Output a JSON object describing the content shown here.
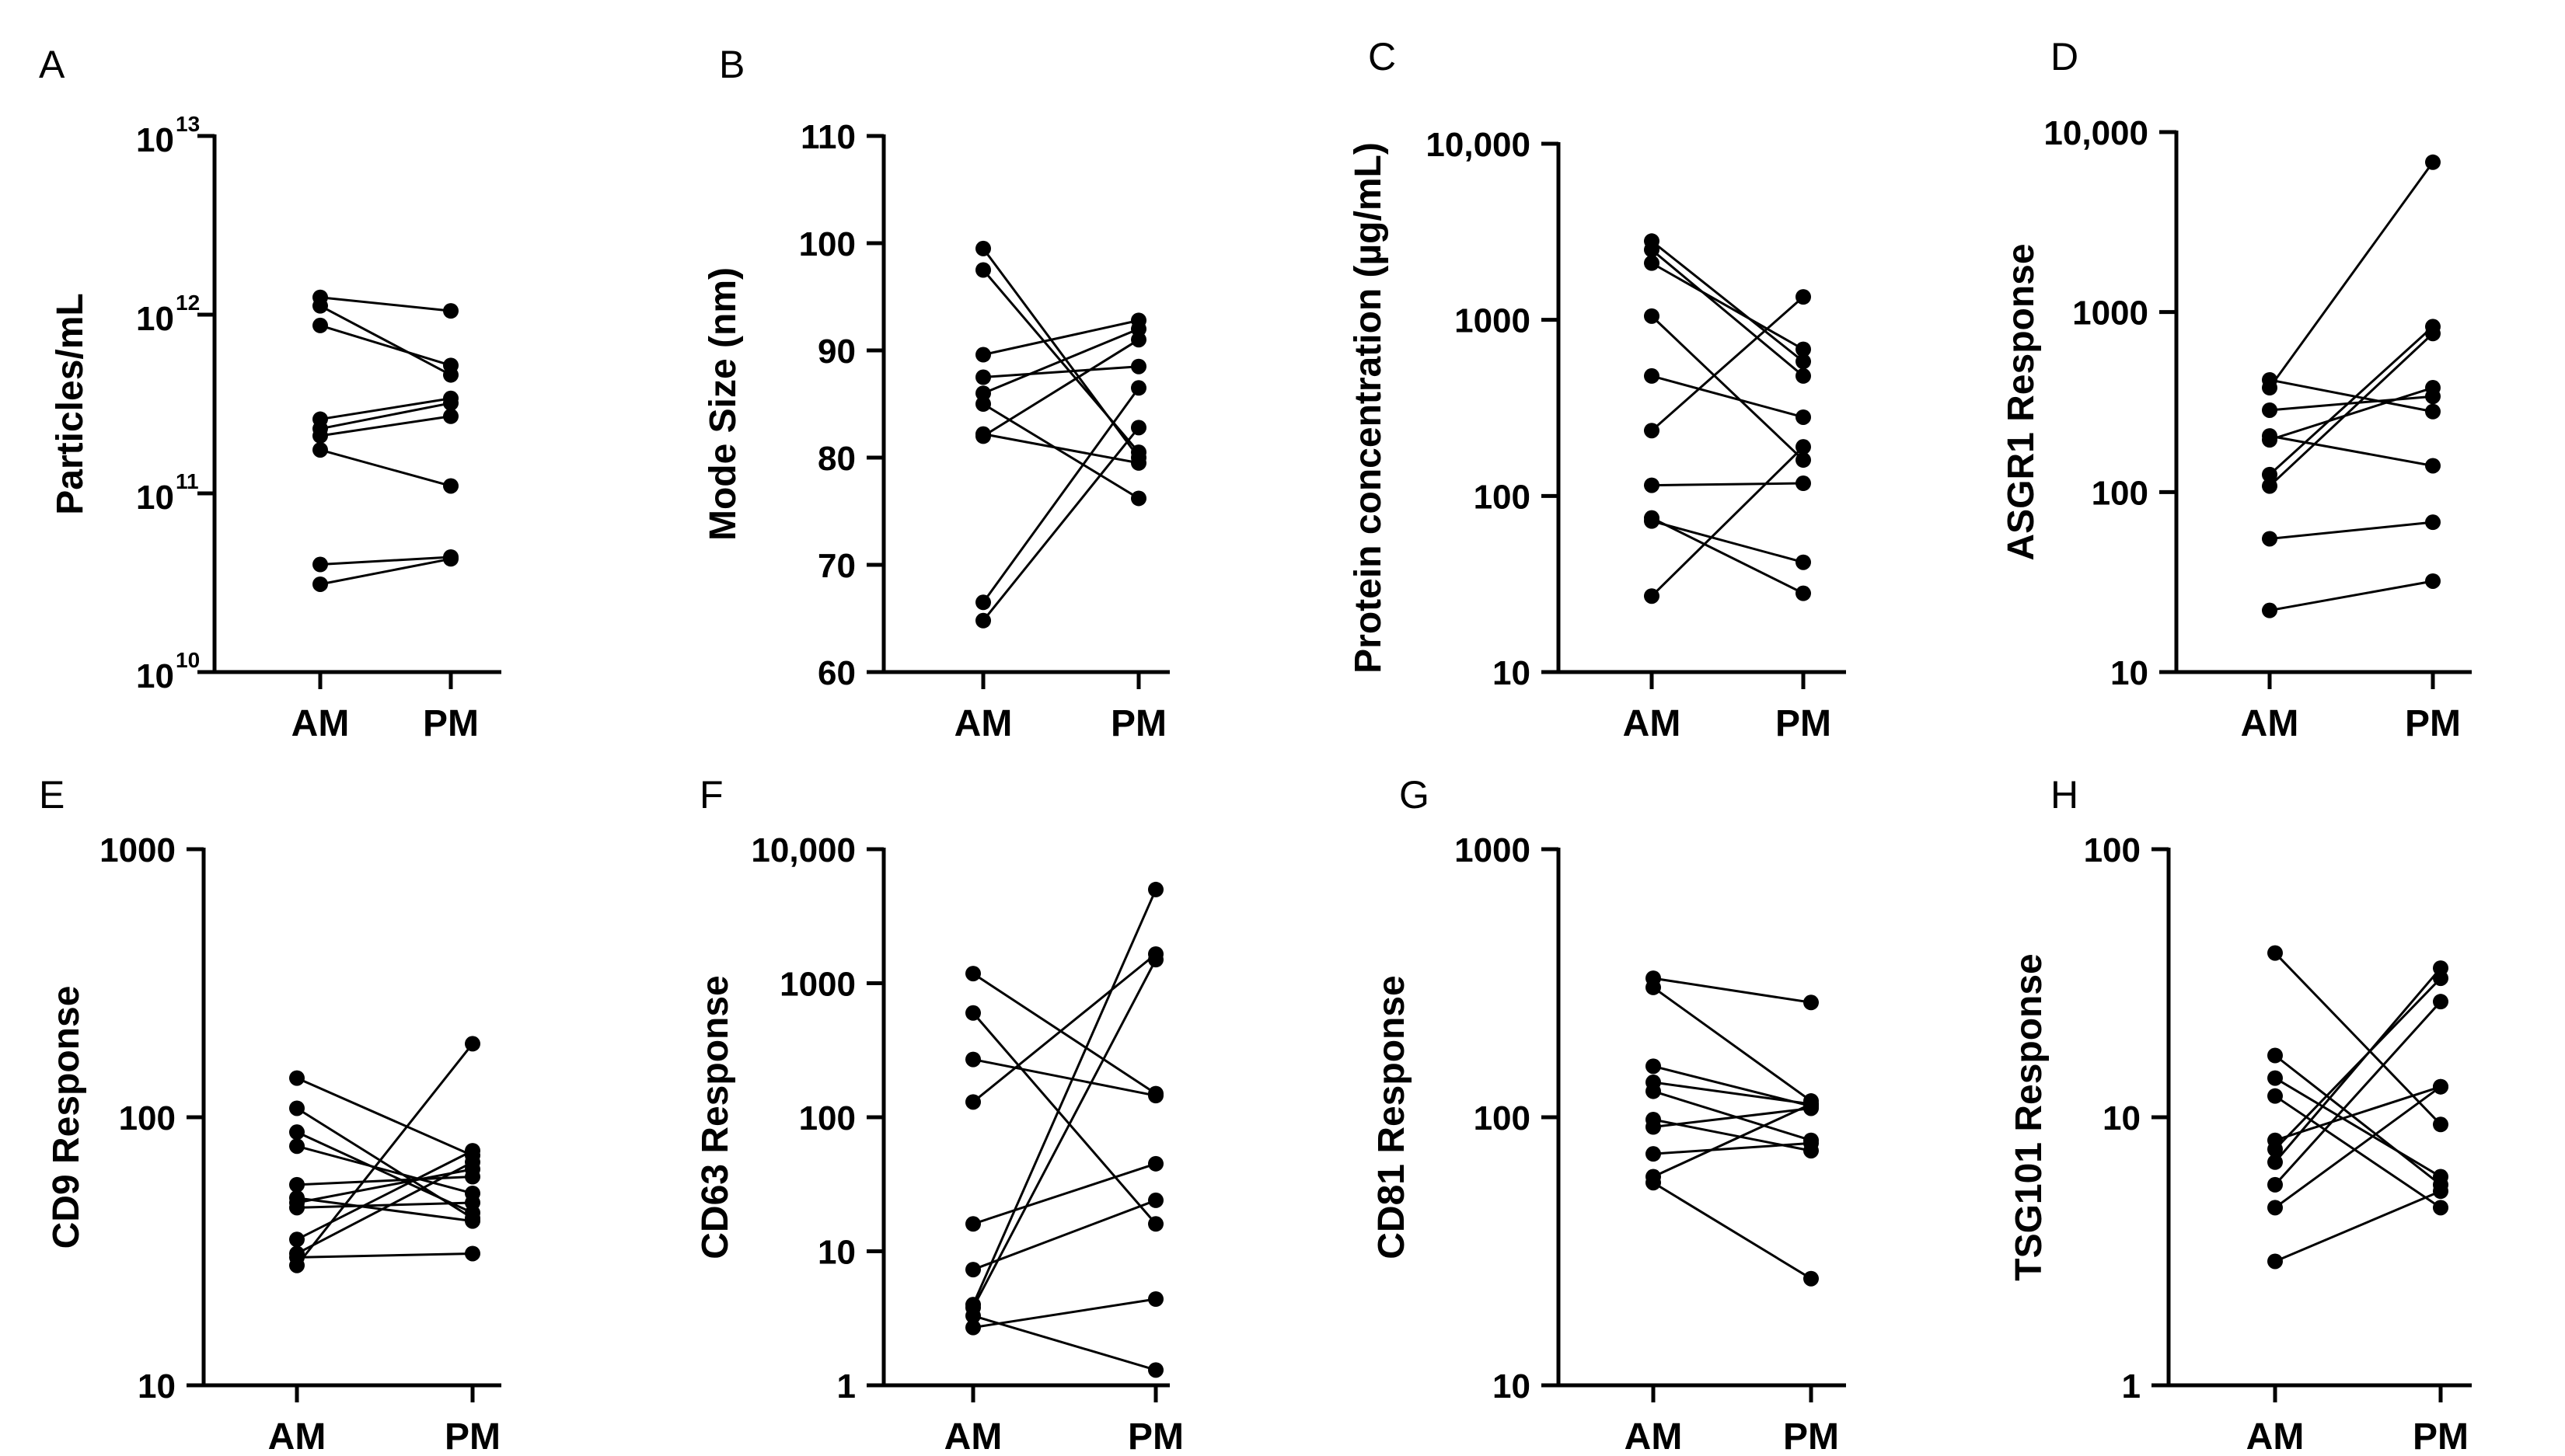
{
  "figure_description_free": true,
  "chart_data": [
    {
      "panel": "A",
      "type": "scatter",
      "scale": "log",
      "ylabel": "Particles/mL",
      "yticks": [
        {
          "v": 10000000000.0,
          "base": "10",
          "exp": "10"
        },
        {
          "v": 100000000000.0,
          "base": "10",
          "exp": "11"
        },
        {
          "v": 1000000000000.0,
          "base": "10",
          "exp": "12"
        },
        {
          "v": 10000000000000.0,
          "base": "10",
          "exp": "13"
        }
      ],
      "ylim": [
        10000000000.0,
        10000000000000.0
      ],
      "categories": [
        "AM",
        "PM"
      ],
      "pairs": [
        [
          1250000000000.0,
          1050000000000.0
        ],
        [
          1120000000000.0,
          460000000000.0
        ],
        [
          870000000000.0,
          520000000000.0
        ],
        [
          260000000000.0,
          340000000000.0
        ],
        [
          230000000000.0,
          320000000000.0
        ],
        [
          210000000000.0,
          270000000000.0
        ],
        [
          175000000000.0,
          110000000000.0
        ],
        [
          40000000000.0,
          44000000000.0
        ],
        [
          31000000000.0,
          43000000000.0
        ]
      ]
    },
    {
      "panel": "B",
      "type": "scatter",
      "scale": "linear",
      "ylabel": "Mode Size (nm)",
      "yticks": [
        {
          "v": 60,
          "label": "60"
        },
        {
          "v": 70,
          "label": "70"
        },
        {
          "v": 80,
          "label": "80"
        },
        {
          "v": 90,
          "label": "90"
        },
        {
          "v": 100,
          "label": "100"
        },
        {
          "v": 110,
          "label": "110"
        }
      ],
      "ylim": [
        60,
        110
      ],
      "categories": [
        "AM",
        "PM"
      ],
      "pairs": [
        [
          99.5,
          80.0
        ],
        [
          97.5,
          80.5
        ],
        [
          89.6,
          92.8
        ],
        [
          87.5,
          88.5
        ],
        [
          86.0,
          92.0
        ],
        [
          82.2,
          79.5
        ],
        [
          82.0,
          91.0
        ],
        [
          66.5,
          86.5
        ],
        [
          64.8,
          82.8
        ],
        [
          85.0,
          76.2
        ]
      ]
    },
    {
      "panel": "C",
      "type": "scatter",
      "scale": "log",
      "ylabel": "Protein concentration (µg/mL)",
      "yticks": [
        {
          "v": 10,
          "label": "10"
        },
        {
          "v": 100,
          "label": "100"
        },
        {
          "v": 1000,
          "label": "1000"
        },
        {
          "v": 10000,
          "label": "10,000"
        }
      ],
      "ylim": [
        10,
        10000
      ],
      "categories": [
        "AM",
        "PM"
      ],
      "pairs": [
        [
          2800,
          580
        ],
        [
          2500,
          480
        ],
        [
          2100,
          680
        ],
        [
          1050,
          160
        ],
        [
          480,
          280
        ],
        [
          235,
          1350
        ],
        [
          115,
          118
        ],
        [
          75,
          28
        ],
        [
          72,
          42
        ],
        [
          27,
          190
        ]
      ]
    },
    {
      "panel": "D",
      "type": "scatter",
      "scale": "log",
      "ylabel": "ASGR1 Response",
      "yticks": [
        {
          "v": 10,
          "label": "10"
        },
        {
          "v": 100,
          "label": "100"
        },
        {
          "v": 1000,
          "label": "1000"
        },
        {
          "v": 10000,
          "label": "10,000"
        }
      ],
      "ylim": [
        10,
        10000
      ],
      "categories": [
        "AM",
        "PM"
      ],
      "pairs": [
        [
          420,
          280
        ],
        [
          380,
          6800
        ],
        [
          285,
          340
        ],
        [
          205,
          140
        ],
        [
          195,
          380
        ],
        [
          125,
          830
        ],
        [
          108,
          760
        ],
        [
          55,
          68
        ],
        [
          22,
          32
        ]
      ]
    },
    {
      "panel": "E",
      "type": "scatter",
      "scale": "log",
      "ylabel": "CD9 Response",
      "yticks": [
        {
          "v": 10,
          "label": "10"
        },
        {
          "v": 100,
          "label": "100"
        },
        {
          "v": 1000,
          "label": "1000"
        }
      ],
      "ylim": [
        10,
        1000
      ],
      "categories": [
        "AM",
        "PM"
      ],
      "pairs": [
        [
          140,
          72
        ],
        [
          108,
          42
        ],
        [
          88,
          44
        ],
        [
          78,
          52
        ],
        [
          56,
          60
        ],
        [
          50,
          41
        ],
        [
          48,
          64
        ],
        [
          46,
          48
        ],
        [
          35,
          75
        ],
        [
          31,
          68
        ],
        [
          28,
          188
        ],
        [
          30,
          31
        ]
      ]
    },
    {
      "panel": "F",
      "type": "scatter",
      "scale": "log",
      "ylabel": "CD63 Response",
      "yticks": [
        {
          "v": 1,
          "label": "1"
        },
        {
          "v": 10,
          "label": "10"
        },
        {
          "v": 100,
          "label": "100"
        },
        {
          "v": 1000,
          "label": "1000"
        },
        {
          "v": 10000,
          "label": "10,000"
        }
      ],
      "ylim": [
        1,
        10000
      ],
      "categories": [
        "AM",
        "PM"
      ],
      "pairs": [
        [
          1180,
          150
        ],
        [
          600,
          16
        ],
        [
          270,
          145
        ],
        [
          130,
          1650
        ],
        [
          16,
          45
        ],
        [
          7.3,
          24
        ],
        [
          4.0,
          5000
        ],
        [
          3.8,
          1500
        ],
        [
          3.3,
          1.3
        ],
        [
          2.7,
          4.4
        ]
      ]
    },
    {
      "panel": "G",
      "type": "scatter",
      "scale": "log",
      "ylabel": "CD81 Response",
      "yticks": [
        {
          "v": 10,
          "label": "10"
        },
        {
          "v": 100,
          "label": "100"
        },
        {
          "v": 1000,
          "label": "1000"
        }
      ],
      "ylim": [
        10,
        1000
      ],
      "categories": [
        "AM",
        "PM"
      ],
      "pairs": [
        [
          330,
          268
        ],
        [
          305,
          115
        ],
        [
          155,
          110
        ],
        [
          135,
          112
        ],
        [
          125,
          82
        ],
        [
          98,
          75
        ],
        [
          92,
          108
        ],
        [
          73,
          80
        ],
        [
          60,
          112
        ],
        [
          57,
          25
        ]
      ]
    },
    {
      "panel": "H",
      "type": "scatter",
      "scale": "log",
      "ylabel": "TSG101 Response",
      "yticks": [
        {
          "v": 1,
          "label": "1"
        },
        {
          "v": 10,
          "label": "10"
        },
        {
          "v": 100,
          "label": "100"
        }
      ],
      "ylim": [
        1,
        100
      ],
      "categories": [
        "AM",
        "PM"
      ],
      "pairs": [
        [
          41,
          9.4
        ],
        [
          17,
          5.6
        ],
        [
          14,
          6.0
        ],
        [
          12,
          4.6
        ],
        [
          8.2,
          13
        ],
        [
          7.6,
          33
        ],
        [
          6.8,
          36
        ],
        [
          5.6,
          27
        ],
        [
          4.6,
          13
        ],
        [
          2.9,
          5.3
        ]
      ]
    }
  ]
}
